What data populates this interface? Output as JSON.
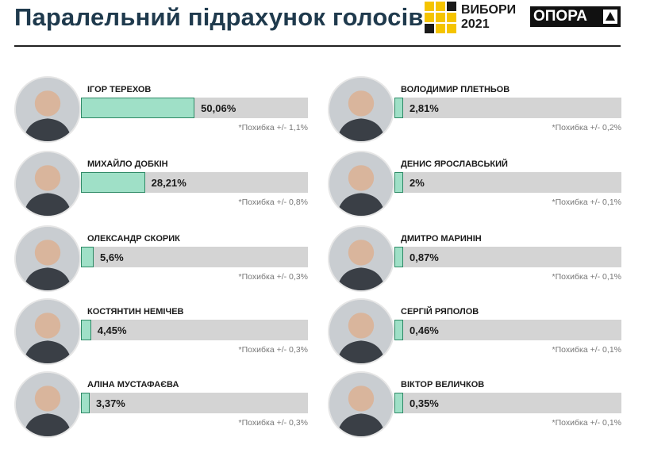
{
  "header": {
    "title": "Паралельний підрахунок голосів",
    "vybory_line1": "ВИБОРИ",
    "vybory_line2": "2021",
    "opora": "ОПОРА"
  },
  "colors": {
    "fill": "#9fe0c7",
    "fill_border": "#2e8a66",
    "track": "#d4d4d4",
    "title": "#1f3a4d"
  },
  "chart_data": {
    "type": "bar",
    "orientation": "horizontal",
    "unit": "%",
    "xlim": [
      0,
      100
    ],
    "categories": [
      "ІГОР ТЕРЕХОВ",
      "МИХАЙЛО ДОБКІН",
      "ОЛЕКСАНДР СКОРИК",
      "КОСТЯНТИН НЕМІЧЕВ",
      "АЛІНА МУСТАФАЄВА",
      "ВОЛОДИМИР ПЛЕТНЬОВ",
      "ДЕНИС ЯРОСЛАВСЬКИЙ",
      "ДМИТРО МАРИНІН",
      "СЕРГІЙ РЯПОЛОВ",
      "ВІКТОР ВЕЛИЧКОВ"
    ],
    "values": [
      50.06,
      28.21,
      5.6,
      4.45,
      3.37,
      2.81,
      2,
      0.87,
      0.46,
      0.35
    ],
    "value_labels": [
      "50,06%",
      "28,21%",
      "5,6%",
      "4,45%",
      "3,37%",
      "2,81%",
      "2%",
      "0,87%",
      "0,46%",
      "0,35%"
    ],
    "errors": [
      "*Похибка +/- 1,1%",
      "*Похибка +/- 0,8%",
      "*Похибка +/- 0,3%",
      "*Похибка +/- 0,3%",
      "*Похибка +/- 0,3%",
      "*Похибка +/- 0,2%",
      "*Похибка +/- 0,1%",
      "*Похибка +/- 0,1%",
      "*Похибка +/- 0,1%",
      "*Похибка +/- 0,1%"
    ]
  }
}
